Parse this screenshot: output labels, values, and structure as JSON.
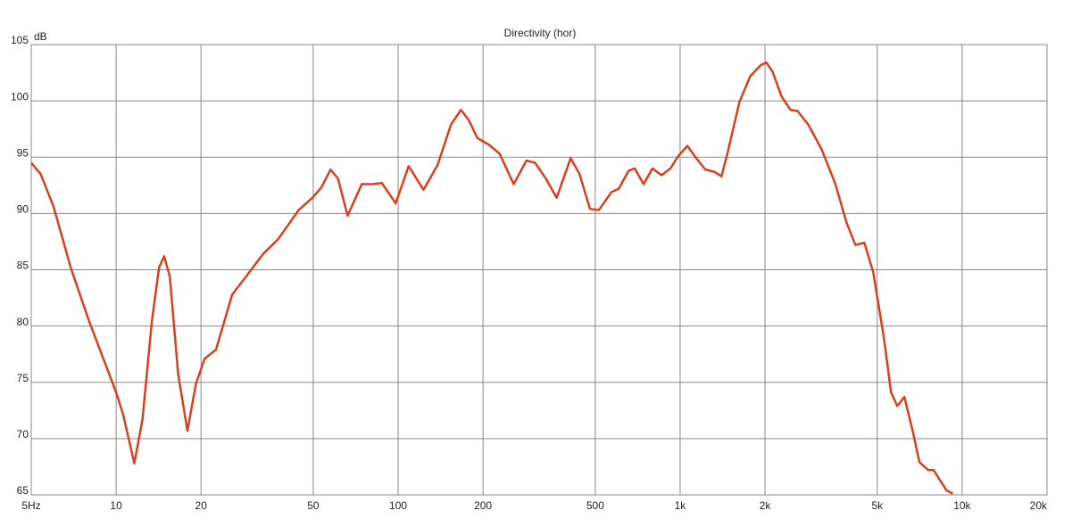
{
  "chart_data": {
    "type": "line",
    "title": "Directivity (hor)",
    "y_label": "dB",
    "x_scale": "log",
    "grid": true,
    "color": "#d8401c",
    "x": [
      5,
      5.4,
      6,
      6.9,
      8,
      9.2,
      10,
      10.6,
      11.6,
      12.4,
      13.4,
      14.2,
      14.8,
      15.5,
      16.6,
      17.9,
      19.2,
      20.6,
      22.6,
      25.8,
      28.7,
      33.2,
      37.5,
      44.4,
      49.7,
      53.4,
      57.6,
      61.2,
      66.2,
      74.3,
      81.4,
      87.6,
      98,
      109,
      123,
      138,
      154,
      167,
      178,
      191,
      210,
      229,
      257,
      285,
      306,
      334,
      365,
      409,
      440,
      479,
      515,
      571,
      606,
      657,
      690,
      742,
      798,
      859,
      924,
      985,
      1061,
      1141,
      1228,
      1322,
      1402,
      1477,
      1623,
      1773,
      1937,
      2023,
      2127,
      2288,
      2461,
      2608,
      2846,
      3174,
      3543,
      3891,
      4183,
      4500,
      4838,
      5283,
      5597,
      5889,
      6241,
      6661,
      7060,
      7591,
      7935,
      8295,
      8809,
      9275
    ],
    "values": [
      94.5,
      93.5,
      90.6,
      85.2,
      80.5,
      76.5,
      74.1,
      72.1,
      67.8,
      71.7,
      80.5,
      85.2,
      86.2,
      84.4,
      75.7,
      70.7,
      74.9,
      77.1,
      77.9,
      82.8,
      84.3,
      86.4,
      87.7,
      90.3,
      91.4,
      92.3,
      93.9,
      93.1,
      89.8,
      92.6,
      92.6,
      92.7,
      90.9,
      94.2,
      92.1,
      94.3,
      97.9,
      99.2,
      98.3,
      96.7,
      96.1,
      95.3,
      92.6,
      94.7,
      94.5,
      93.1,
      91.4,
      94.9,
      93.5,
      90.4,
      90.3,
      91.9,
      92.2,
      93.8,
      94.0,
      92.6,
      94.0,
      93.4,
      94.0,
      95.1,
      96.0,
      94.9,
      93.9,
      93.7,
      93.3,
      95.5,
      99.9,
      102.2,
      103.2,
      103.4,
      102.6,
      100.4,
      99.2,
      99.1,
      97.9,
      95.7,
      92.7,
      89.2,
      87.2,
      87.4,
      84.8,
      78.9,
      74.1,
      72.9,
      73.7,
      70.8,
      67.9,
      67.2,
      67.2,
      66.4,
      65.4,
      65.1
    ],
    "xlim": [
      5,
      20000
    ],
    "xticks": [
      {
        "value": 5,
        "label": "5Hz"
      },
      10,
      20,
      50,
      100,
      200,
      500,
      {
        "value": 1000,
        "label": "1k"
      },
      {
        "value": 2000,
        "label": "2k"
      },
      {
        "value": 5000,
        "label": "5k"
      },
      {
        "value": 10000,
        "label": "10k"
      },
      {
        "value": 20000,
        "label": "20k"
      }
    ],
    "ylim": [
      65,
      105
    ],
    "yticks": [
      65,
      70,
      75,
      80,
      85,
      90,
      95,
      100,
      105
    ]
  }
}
